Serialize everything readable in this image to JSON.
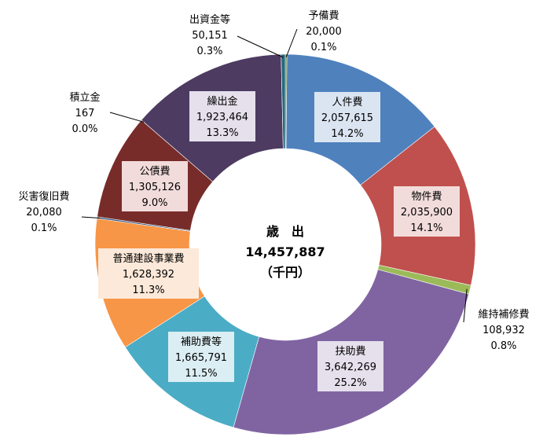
{
  "chart_data": {
    "type": "pie",
    "title": "",
    "center": {
      "line1": "歳　出",
      "line2": "14,457,887",
      "line3": "（千円）"
    },
    "series": [
      {
        "name": "",
        "categories": [
          "予備費",
          "人件費",
          "物件費",
          "維持補修費",
          "扶助費",
          "補助費等",
          "普通建設事業費",
          "災害復旧費",
          "公債費",
          "積立金",
          "繰出金",
          "出資金等"
        ],
        "values": [
          20000,
          2057615,
          2035900,
          108932,
          3642269,
          1665791,
          1628392,
          20080,
          1305126,
          167,
          1923464,
          50151
        ],
        "value_labels": [
          "20,000",
          "2,057,615",
          "2,035,900",
          "108,932",
          "3,642,269",
          "1,665,791",
          "1,628,392",
          "20,080",
          "1,305,126",
          "167",
          "1,923,464",
          "50,151"
        ],
        "percent_labels": [
          "0.1%",
          "14.2%",
          "14.1%",
          "0.8%",
          "25.2%",
          "11.5%",
          "11.3%",
          "0.1%",
          "9.0%",
          "0.0%",
          "13.3%",
          "0.3%"
        ],
        "colors": [
          "#4f7b2a",
          "#4f81bd",
          "#c0504d",
          "#9bbb59",
          "#8064a2",
          "#4bacc6",
          "#f79646",
          "#2c4d75",
          "#772c2a",
          "#5f7530",
          "#4d3b62",
          "#276a7c"
        ],
        "label_box_colors": [
          "",
          "#dbe5f1",
          "#f2dcdb",
          "",
          "#e5e0ec",
          "#dbeef4",
          "#fde9d9",
          "",
          "#f2dcdb",
          "",
          "#e5e0ec",
          ""
        ]
      }
    ],
    "legend": "none"
  }
}
